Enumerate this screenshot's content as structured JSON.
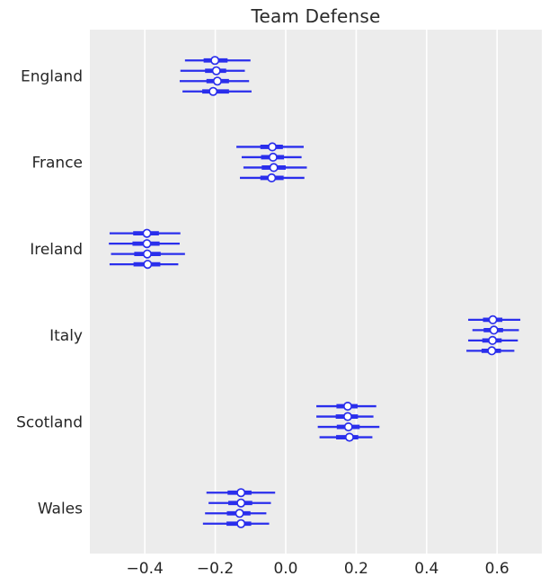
{
  "title": "Team Defense",
  "chart_data": {
    "type": "forest",
    "title": "Team Defense",
    "xlabel": "",
    "ylabel": "",
    "xlim": [
      -0.556,
      0.727
    ],
    "xticks": [
      -0.4,
      -0.2,
      0.0,
      0.2,
      0.4,
      0.6
    ],
    "xtick_labels": [
      "−0.4",
      "−0.2",
      "0.0",
      "0.2",
      "0.4",
      "0.6"
    ],
    "grid": "vertical",
    "legend_position": "none",
    "chains_per_category": 4,
    "categories": [
      "England",
      "France",
      "Ireland",
      "Italy",
      "Scotland",
      "Wales"
    ],
    "series": [
      {
        "name": "England",
        "chains": [
          {
            "lo": -0.286,
            "q1": -0.233,
            "median": -0.201,
            "q3": -0.165,
            "hi": -0.1
          },
          {
            "lo": -0.299,
            "q1": -0.229,
            "median": -0.197,
            "q3": -0.169,
            "hi": -0.116
          },
          {
            "lo": -0.301,
            "q1": -0.225,
            "median": -0.194,
            "q3": -0.161,
            "hi": -0.104
          },
          {
            "lo": -0.293,
            "q1": -0.237,
            "median": -0.206,
            "q3": -0.161,
            "hi": -0.097
          }
        ]
      },
      {
        "name": "France",
        "chains": [
          {
            "lo": -0.14,
            "q1": -0.072,
            "median": -0.038,
            "q3": -0.008,
            "hi": 0.051
          },
          {
            "lo": -0.125,
            "q1": -0.07,
            "median": -0.036,
            "q3": -0.005,
            "hi": 0.045
          },
          {
            "lo": -0.12,
            "q1": -0.068,
            "median": -0.034,
            "q3": 0.0,
            "hi": 0.06
          },
          {
            "lo": -0.13,
            "q1": -0.072,
            "median": -0.04,
            "q3": -0.006,
            "hi": 0.053
          }
        ]
      },
      {
        "name": "Ireland",
        "chains": [
          {
            "lo": -0.5,
            "q1": -0.433,
            "median": -0.394,
            "q3": -0.36,
            "hi": -0.299
          },
          {
            "lo": -0.502,
            "q1": -0.435,
            "median": -0.394,
            "q3": -0.358,
            "hi": -0.301
          },
          {
            "lo": -0.496,
            "q1": -0.43,
            "median": -0.393,
            "q3": -0.355,
            "hi": -0.286
          },
          {
            "lo": -0.5,
            "q1": -0.432,
            "median": -0.392,
            "q3": -0.356,
            "hi": -0.305
          }
        ]
      },
      {
        "name": "Italy",
        "chains": [
          {
            "lo": 0.518,
            "q1": 0.56,
            "median": 0.588,
            "q3": 0.615,
            "hi": 0.666
          },
          {
            "lo": 0.53,
            "q1": 0.562,
            "median": 0.591,
            "q3": 0.617,
            "hi": 0.662
          },
          {
            "lo": 0.518,
            "q1": 0.558,
            "median": 0.587,
            "q3": 0.613,
            "hi": 0.659
          },
          {
            "lo": 0.513,
            "q1": 0.556,
            "median": 0.585,
            "q3": 0.611,
            "hi": 0.649
          }
        ]
      },
      {
        "name": "Scotland",
        "chains": [
          {
            "lo": 0.087,
            "q1": 0.144,
            "median": 0.176,
            "q3": 0.204,
            "hi": 0.257
          },
          {
            "lo": 0.087,
            "q1": 0.142,
            "median": 0.176,
            "q3": 0.205,
            "hi": 0.249
          },
          {
            "lo": 0.091,
            "q1": 0.145,
            "median": 0.178,
            "q3": 0.21,
            "hi": 0.266
          },
          {
            "lo": 0.096,
            "q1": 0.143,
            "median": 0.181,
            "q3": 0.206,
            "hi": 0.246
          }
        ]
      },
      {
        "name": "Wales",
        "chains": [
          {
            "lo": -0.225,
            "q1": -0.165,
            "median": -0.127,
            "q3": -0.097,
            "hi": -0.03
          },
          {
            "lo": -0.219,
            "q1": -0.163,
            "median": -0.127,
            "q3": -0.095,
            "hi": -0.042
          },
          {
            "lo": -0.229,
            "q1": -0.167,
            "median": -0.131,
            "q3": -0.1,
            "hi": -0.055
          },
          {
            "lo": -0.235,
            "q1": -0.168,
            "median": -0.127,
            "q3": -0.098,
            "hi": -0.047
          }
        ]
      }
    ],
    "colors": {
      "interval": "#2a2eec",
      "marker_fill": "#ffffff",
      "axes_background": "#ececec",
      "gridline": "#ffffff",
      "text": "#262626",
      "figure_background": "#ffffff"
    }
  }
}
